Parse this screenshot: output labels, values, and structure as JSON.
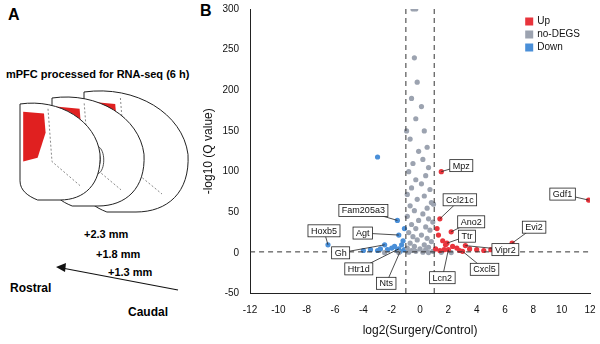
{
  "chart_data": {
    "type": "scatter",
    "panel_label": "B",
    "xlabel": "log2(Surgery/Control)",
    "ylabel": "-log10 (Q value)",
    "xlim": [
      -12,
      12
    ],
    "xticks": [
      -12,
      -10,
      -8,
      -6,
      -4,
      -2,
      0,
      2,
      4,
      6,
      8,
      10,
      12
    ],
    "ylim": [
      -50,
      300
    ],
    "yticks": [
      -50,
      0,
      50,
      100,
      150,
      200,
      250,
      300
    ],
    "grid": false,
    "legend": "top-right",
    "threshold_lines": {
      "x": [
        -1,
        1
      ],
      "y": [
        1.3
      ]
    },
    "series": [
      {
        "name": "Up",
        "color": "#e8343c",
        "values": [
          [
            11.9,
            65
          ],
          [
            1.5,
            100
          ],
          [
            1.4,
            42
          ],
          [
            2.2,
            26
          ],
          [
            1.9,
            12
          ],
          [
            3.2,
            9
          ],
          [
            6.5,
            12
          ],
          [
            3.0,
            2
          ],
          [
            2.0,
            4
          ],
          [
            1.2,
            30
          ],
          [
            1.3,
            22
          ],
          [
            1.6,
            15
          ],
          [
            1.8,
            10
          ],
          [
            2.3,
            8
          ],
          [
            2.6,
            6
          ],
          [
            3.5,
            5
          ],
          [
            4.0,
            4
          ],
          [
            4.5,
            3
          ],
          [
            5.0,
            4
          ],
          [
            5.5,
            3
          ],
          [
            1.1,
            5
          ],
          [
            1.4,
            3
          ],
          [
            2.8,
            3
          ],
          [
            1.7,
            4
          ]
        ]
      },
      {
        "name": "no-DEGS",
        "color": "#9ca3b0",
        "values": [
          [
            -0.5,
            300
          ],
          [
            -0.3,
            300
          ],
          [
            -0.4,
            240
          ],
          [
            -0.2,
            210
          ],
          [
            -0.6,
            190
          ],
          [
            0.1,
            180
          ],
          [
            -0.3,
            165
          ],
          [
            0.3,
            150
          ],
          [
            -0.7,
            140
          ],
          [
            0.5,
            130
          ],
          [
            -0.1,
            125
          ],
          [
            0.2,
            115
          ],
          [
            -0.5,
            110
          ],
          [
            0.6,
            105
          ],
          [
            -0.8,
            100
          ],
          [
            0.4,
            95
          ],
          [
            -0.3,
            90
          ],
          [
            0.1,
            85
          ],
          [
            -0.6,
            80
          ],
          [
            0.7,
            78
          ],
          [
            -0.9,
            72
          ],
          [
            0.3,
            70
          ],
          [
            -0.2,
            66
          ],
          [
            0.8,
            62
          ],
          [
            -0.7,
            58
          ],
          [
            0.5,
            55
          ],
          [
            -0.4,
            52
          ],
          [
            0.2,
            48
          ],
          [
            -0.9,
            45
          ],
          [
            0.6,
            42
          ],
          [
            -0.1,
            40
          ],
          [
            0.9,
            38
          ],
          [
            -0.6,
            35
          ],
          [
            0.4,
            32
          ],
          [
            -0.3,
            30
          ],
          [
            0.7,
            28
          ],
          [
            -0.8,
            25
          ],
          [
            0.1,
            22
          ],
          [
            -0.5,
            20
          ],
          [
            0.5,
            18
          ],
          [
            -0.2,
            16
          ],
          [
            0.8,
            14
          ],
          [
            -0.7,
            12
          ],
          [
            0.3,
            10
          ],
          [
            -0.4,
            8
          ],
          [
            0.6,
            7
          ],
          [
            -0.9,
            6
          ],
          [
            0.0,
            5
          ],
          [
            0.4,
            4
          ],
          [
            -0.6,
            3
          ],
          [
            0.9,
            2
          ],
          [
            -0.3,
            2
          ],
          [
            0.2,
            1
          ],
          [
            -0.8,
            1
          ],
          [
            0.6,
            0.5
          ],
          [
            -1.5,
            0.5
          ],
          [
            1.5,
            0.8
          ],
          [
            -2.5,
            0.3
          ],
          [
            2.2,
            0.4
          ],
          [
            -0.95,
            150
          ],
          [
            0.95,
            60
          ]
        ]
      },
      {
        "name": "Down",
        "color": "#4a8fd8",
        "values": [
          [
            -1.6,
            40
          ],
          [
            -6.5,
            10
          ],
          [
            -1.5,
            22
          ],
          [
            -2.5,
            10
          ],
          [
            -1.5,
            5
          ],
          [
            -1.4,
            2
          ],
          [
            -1.1,
            30
          ],
          [
            -1.2,
            15
          ],
          [
            -1.3,
            10
          ],
          [
            -1.8,
            8
          ],
          [
            -2.0,
            6
          ],
          [
            -2.3,
            4
          ],
          [
            -3.0,
            3
          ],
          [
            -3.5,
            4
          ],
          [
            -4.0,
            3
          ],
          [
            -1.1,
            4
          ],
          [
            -1.6,
            3
          ],
          [
            -2.8,
            5
          ],
          [
            -3.0,
            118
          ]
        ]
      }
    ],
    "annotations": [
      {
        "text": "Gdf1",
        "x": 11.9,
        "y": 65
      },
      {
        "text": "Mpz",
        "x": 1.5,
        "y": 100
      },
      {
        "text": "Ccl21c",
        "x": 1.4,
        "y": 42
      },
      {
        "text": "Ano2",
        "x": 2.2,
        "y": 26
      },
      {
        "text": "Ttr",
        "x": 1.9,
        "y": 12
      },
      {
        "text": "Vipr2",
        "x": 3.2,
        "y": 9
      },
      {
        "text": "Evi2",
        "x": 6.5,
        "y": 12
      },
      {
        "text": "Cxcl5",
        "x": 3.0,
        "y": 2
      },
      {
        "text": "Lcn2",
        "x": 2.0,
        "y": 4
      },
      {
        "text": "Fam205a3",
        "x": -1.6,
        "y": 40
      },
      {
        "text": "Hoxb5",
        "x": -6.5,
        "y": 10
      },
      {
        "text": "Agt",
        "x": -1.5,
        "y": 22
      },
      {
        "text": "Gh",
        "x": -2.5,
        "y": 10
      },
      {
        "text": "Htr1d",
        "x": -1.5,
        "y": 5
      },
      {
        "text": "Nts",
        "x": -1.4,
        "y": 2
      }
    ]
  },
  "diagram": {
    "panel_label": "A",
    "title": "mPFC processed for RNA-seq (6 h)",
    "section_labels": [
      "+2.3 mm",
      "+1.8 mm",
      "+1.3 mm"
    ],
    "direction_labels": {
      "start": "Rostral",
      "end": "Caudal"
    }
  }
}
